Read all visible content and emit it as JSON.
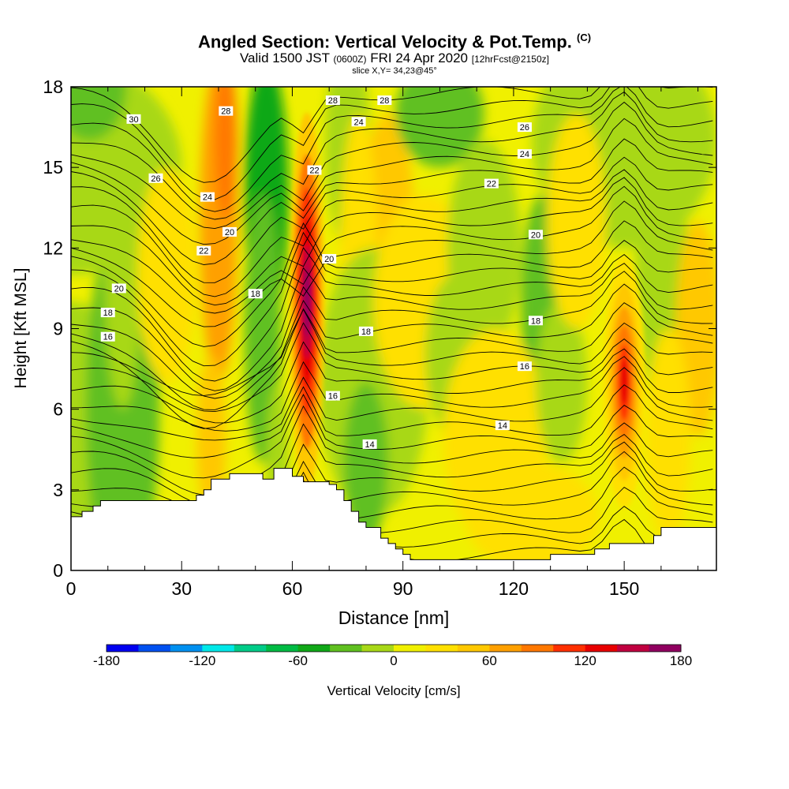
{
  "titles": {
    "main": "Angled Section: Vertical Velocity & Pot.Temp.",
    "main_tag": "(C)",
    "valid_prefix": "Valid 1500 JST",
    "valid_utc": "(0600Z)",
    "valid_date": "FRI 24 Apr 2020",
    "valid_fcst": "[12hrFcst@2150z]",
    "slice": "slice X,Y= 34,23@45°"
  },
  "chart_data": {
    "type": "heatmap",
    "title": "Angled Section: Vertical Velocity & Pot.Temp.",
    "xlabel": "Distance [nm]",
    "ylabel": "Height [Kft MSL]",
    "xlim": [
      0,
      175
    ],
    "ylim": [
      0,
      18
    ],
    "x_ticks": [
      "0",
      "30",
      "60",
      "90",
      "120",
      "150"
    ],
    "x_tick_values": [
      0,
      30,
      60,
      90,
      120,
      150
    ],
    "y_ticks": [
      "0",
      "3",
      "6",
      "9",
      "12",
      "15",
      "18"
    ],
    "y_tick_values": [
      0,
      3,
      6,
      9,
      12,
      15,
      18
    ],
    "colorbar": {
      "label": "Vertical Velocity [cm/s]",
      "tick_labels": [
        "-180",
        "-120",
        "-60",
        "0",
        "60",
        "120",
        "180"
      ],
      "tick_values": [
        -180,
        -120,
        -60,
        0,
        60,
        120,
        180
      ],
      "levels": [
        -180,
        -160,
        -140,
        -120,
        -100,
        -80,
        -60,
        -40,
        -20,
        0,
        20,
        40,
        60,
        80,
        100,
        120,
        140,
        160,
        180
      ],
      "colors": [
        "#0000f0",
        "#0050f0",
        "#0090f0",
        "#00e8e8",
        "#00cc88",
        "#00bb44",
        "#10a818",
        "#60c020",
        "#a8d818",
        "#f0f000",
        "#ffe000",
        "#ffc800",
        "#ffa000",
        "#ff7800",
        "#ff3000",
        "#e80000",
        "#c00040",
        "#900060"
      ]
    },
    "terrain_profile": {
      "x": [
        0,
        3,
        6,
        8,
        14,
        24,
        34,
        36,
        38,
        43,
        48,
        52,
        55,
        60,
        63,
        66,
        70,
        72,
        74,
        76,
        78,
        80,
        84,
        86,
        88,
        90,
        92,
        100,
        110,
        122,
        126,
        130,
        136,
        142,
        146,
        152,
        158,
        160,
        176
      ],
      "height": [
        2.0,
        2.2,
        2.4,
        2.6,
        2.6,
        2.6,
        2.8,
        3.0,
        3.4,
        3.6,
        3.6,
        3.4,
        3.8,
        3.5,
        3.3,
        3.3,
        3.2,
        3.0,
        2.6,
        2.2,
        1.8,
        1.6,
        1.2,
        1.0,
        0.8,
        0.6,
        0.4,
        0.4,
        0.4,
        0.4,
        0.4,
        0.6,
        0.6,
        0.8,
        1.0,
        1.0,
        1.3,
        1.6,
        1.6
      ]
    },
    "updraft_cores": [
      {
        "x": 64,
        "height_kft": 10,
        "max_value": 180
      },
      {
        "x": 150,
        "height_kft": 7,
        "max_value": 130
      }
    ],
    "isentropes_C": {
      "levels": [
        14,
        16,
        18,
        20,
        22,
        24,
        26,
        28,
        30
      ],
      "labels": [
        {
          "text": "30",
          "x": 17,
          "height": 16.8
        },
        {
          "text": "28",
          "x": 42,
          "height": 17.1
        },
        {
          "text": "26",
          "x": 23,
          "height": 14.6
        },
        {
          "text": "24",
          "x": 37,
          "height": 13.9
        },
        {
          "text": "22",
          "x": 36,
          "height": 11.9
        },
        {
          "text": "20",
          "x": 43,
          "height": 12.6
        },
        {
          "text": "20",
          "x": 13,
          "height": 10.5
        },
        {
          "text": "18",
          "x": 10,
          "height": 9.6
        },
        {
          "text": "16",
          "x": 10,
          "height": 8.7
        },
        {
          "text": "18",
          "x": 50,
          "height": 10.3
        },
        {
          "text": "28",
          "x": 71,
          "height": 17.5
        },
        {
          "text": "28",
          "x": 85,
          "height": 17.5
        },
        {
          "text": "24",
          "x": 78,
          "height": 16.7
        },
        {
          "text": "22",
          "x": 66,
          "height": 14.9
        },
        {
          "text": "20",
          "x": 70,
          "height": 11.6
        },
        {
          "text": "18",
          "x": 80,
          "height": 8.9
        },
        {
          "text": "16",
          "x": 71,
          "height": 6.5
        },
        {
          "text": "14",
          "x": 81,
          "height": 4.7
        },
        {
          "text": "26",
          "x": 123,
          "height": 16.5
        },
        {
          "text": "24",
          "x": 123,
          "height": 15.5
        },
        {
          "text": "22",
          "x": 114,
          "height": 14.4
        },
        {
          "text": "20",
          "x": 126,
          "height": 12.5
        },
        {
          "text": "18",
          "x": 126,
          "height": 9.3
        },
        {
          "text": "16",
          "x": 123,
          "height": 7.6
        },
        {
          "text": "14",
          "x": 117,
          "height": 5.4
        }
      ]
    }
  }
}
